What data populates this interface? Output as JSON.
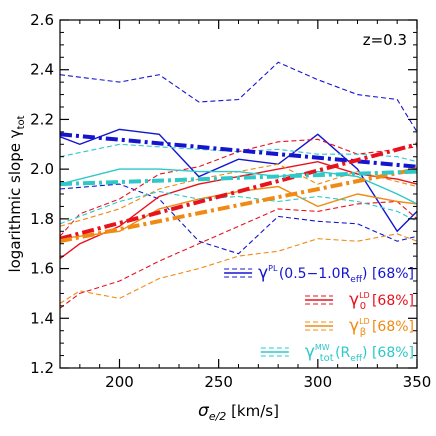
{
  "chart_data": {
    "type": "line",
    "annotation": "z=0.3",
    "xlabel": {
      "main": "σ",
      "sub": "e/2",
      "unit": " [km/s]"
    },
    "ylabel": {
      "main": "logarithmic slope  γ",
      "sub": "tot"
    },
    "xlim": [
      170,
      350
    ],
    "ylim": [
      1.2,
      2.6
    ],
    "xticks": [
      200,
      250,
      300,
      350
    ],
    "yticks": [
      1.2,
      1.4,
      1.6,
      1.8,
      2.0,
      2.2,
      2.4,
      2.6
    ],
    "xtick_labels": [
      "200",
      "250",
      "300",
      "350"
    ],
    "ytick_labels": [
      "1.2",
      "1.4",
      "1.6",
      "1.8",
      "2.0",
      "2.2",
      "2.4",
      "2.6"
    ],
    "legend_position": "bottom-right",
    "series": [
      {
        "key": "pl",
        "color": "#1515d0",
        "legend": {
          "main": "γ",
          "sup": "PL",
          "rest": "(0.5−1.0R",
          "sub2": "eff",
          "tail": ")  [68%]"
        },
        "fit": [
          [
            170,
            2.14
          ],
          [
            350,
            2.01
          ]
        ],
        "median": [
          [
            170,
            2.13
          ],
          [
            180,
            2.1
          ],
          [
            200,
            2.16
          ],
          [
            220,
            2.14
          ],
          [
            240,
            1.97
          ],
          [
            260,
            2.04
          ],
          [
            280,
            2.02
          ],
          [
            300,
            2.14
          ],
          [
            320,
            2.0
          ],
          [
            340,
            1.75
          ],
          [
            350,
            1.83
          ]
        ],
        "upper": [
          [
            170,
            2.38
          ],
          [
            200,
            2.35
          ],
          [
            220,
            2.38
          ],
          [
            240,
            2.27
          ],
          [
            260,
            2.28
          ],
          [
            280,
            2.43
          ],
          [
            300,
            2.36
          ],
          [
            320,
            2.3
          ],
          [
            340,
            2.28
          ],
          [
            350,
            2.15
          ]
        ],
        "lower": [
          [
            170,
            1.92
          ],
          [
            200,
            1.94
          ],
          [
            220,
            1.88
          ],
          [
            240,
            1.71
          ],
          [
            260,
            1.66
          ],
          [
            280,
            1.81
          ],
          [
            300,
            1.79
          ],
          [
            320,
            1.78
          ],
          [
            340,
            1.71
          ],
          [
            350,
            1.73
          ]
        ]
      },
      {
        "key": "ld",
        "color": "#e8121d",
        "legend": {
          "main": "γ",
          "sup": "LD",
          "sub": "0",
          "tail": "  [68%]"
        },
        "fit": [
          [
            170,
            1.72
          ],
          [
            350,
            2.1
          ]
        ],
        "median": [
          [
            170,
            1.64
          ],
          [
            180,
            1.7
          ],
          [
            200,
            1.77
          ],
          [
            220,
            1.89
          ],
          [
            240,
            1.94
          ],
          [
            260,
            1.97
          ],
          [
            280,
            2.0
          ],
          [
            300,
            2.03
          ],
          [
            320,
            1.98
          ],
          [
            340,
            1.96
          ],
          [
            350,
            1.94
          ]
        ],
        "upper": [
          [
            170,
            1.73
          ],
          [
            180,
            1.82
          ],
          [
            200,
            1.88
          ],
          [
            220,
            1.98
          ],
          [
            240,
            2.01
          ],
          [
            260,
            2.07
          ],
          [
            280,
            2.11
          ],
          [
            300,
            2.12
          ],
          [
            320,
            2.06
          ],
          [
            340,
            2.08
          ],
          [
            350,
            2.09
          ]
        ],
        "lower": [
          [
            170,
            1.44
          ],
          [
            180,
            1.5
          ],
          [
            200,
            1.55
          ],
          [
            220,
            1.63
          ],
          [
            240,
            1.7
          ],
          [
            260,
            1.77
          ],
          [
            280,
            1.84
          ],
          [
            300,
            1.83
          ],
          [
            320,
            1.86
          ],
          [
            340,
            1.87
          ],
          [
            350,
            1.8
          ]
        ]
      },
      {
        "key": "ldbeta",
        "color": "#f08a12",
        "legend": {
          "main": "γ",
          "sup": "LD",
          "sub": "β",
          "tail": "  [68%]"
        },
        "fit": [
          [
            170,
            1.71
          ],
          [
            350,
            2.0
          ]
        ],
        "median": [
          [
            170,
            1.72
          ],
          [
            200,
            1.75
          ],
          [
            220,
            1.84
          ],
          [
            240,
            1.88
          ],
          [
            260,
            1.91
          ],
          [
            280,
            1.93
          ],
          [
            300,
            1.85
          ],
          [
            320,
            1.9
          ],
          [
            340,
            1.87
          ],
          [
            350,
            1.86
          ]
        ],
        "upper": [
          [
            170,
            1.77
          ],
          [
            200,
            1.84
          ],
          [
            220,
            1.92
          ],
          [
            240,
            1.96
          ],
          [
            260,
            1.99
          ],
          [
            280,
            2.02
          ],
          [
            300,
            1.94
          ],
          [
            320,
            1.99
          ],
          [
            340,
            1.95
          ],
          [
            350,
            1.93
          ]
        ],
        "lower": [
          [
            170,
            1.46
          ],
          [
            180,
            1.51
          ],
          [
            200,
            1.48
          ],
          [
            220,
            1.56
          ],
          [
            240,
            1.6
          ],
          [
            260,
            1.65
          ],
          [
            280,
            1.67
          ],
          [
            300,
            1.72
          ],
          [
            320,
            1.71
          ],
          [
            340,
            1.74
          ],
          [
            350,
            1.71
          ]
        ]
      },
      {
        "key": "mw",
        "color": "#2ec8c8",
        "legend": {
          "main": "γ",
          "sup": "MW",
          "sub": "tot",
          "rest": "(R",
          "sub2": "eff",
          "tail": ")  [68%]"
        },
        "fit": [
          [
            170,
            1.94
          ],
          [
            350,
            1.99
          ]
        ],
        "median": [
          [
            170,
            1.94
          ],
          [
            200,
            2.0
          ],
          [
            220,
            2.0
          ],
          [
            240,
            1.99
          ],
          [
            260,
            1.99
          ],
          [
            280,
            1.97
          ],
          [
            300,
            1.99
          ],
          [
            320,
            1.97
          ],
          [
            340,
            1.9
          ],
          [
            350,
            1.86
          ]
        ],
        "upper": [
          [
            170,
            2.05
          ],
          [
            200,
            2.1
          ],
          [
            220,
            2.09
          ],
          [
            240,
            2.08
          ],
          [
            260,
            2.07
          ],
          [
            280,
            2.08
          ],
          [
            300,
            2.06
          ],
          [
            320,
            2.06
          ],
          [
            340,
            2.05
          ],
          [
            350,
            2.03
          ]
        ],
        "lower": [
          [
            170,
            1.78
          ],
          [
            200,
            1.87
          ],
          [
            220,
            1.91
          ],
          [
            240,
            1.88
          ],
          [
            260,
            1.89
          ],
          [
            280,
            1.87
          ],
          [
            300,
            1.89
          ],
          [
            320,
            1.87
          ],
          [
            340,
            1.83
          ],
          [
            350,
            1.79
          ]
        ]
      }
    ]
  }
}
